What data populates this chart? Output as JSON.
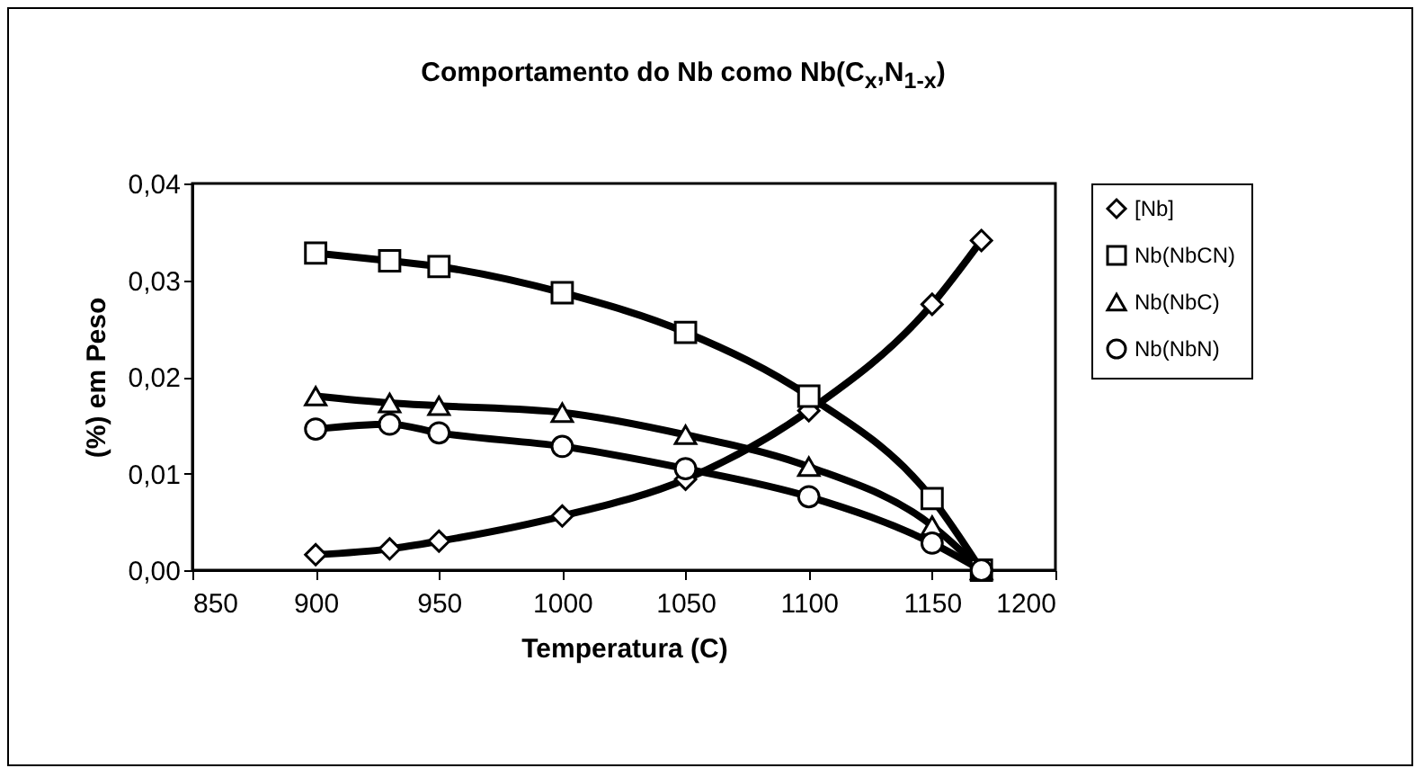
{
  "chart_data": {
    "type": "line",
    "title": "Comportamento do Nb como Nb(C$_{x}$,N$_{1-x}$)",
    "xlabel": "Temperatura (C)",
    "ylabel": "(%) em Peso",
    "x": [
      900,
      930,
      950,
      1000,
      1050,
      1100,
      1150,
      1170
    ],
    "series": [
      {
        "name": "[Nb]",
        "color": "#000000",
        "marker": "diamond",
        "values": [
          0.0016,
          0.0022,
          0.003,
          0.0056,
          0.0094,
          0.0165,
          0.0275,
          0.0341
        ]
      },
      {
        "name": "Nb(NbCN)",
        "color": "#000000",
        "marker": "square",
        "values": [
          0.0328,
          0.032,
          0.0314,
          0.0287,
          0.0246,
          0.018,
          0.0074,
          0
        ]
      },
      {
        "name": "Nb(NbC)",
        "color": "#000000",
        "marker": "triangle",
        "values": [
          0.018,
          0.0173,
          0.017,
          0.0163,
          0.014,
          0.0107,
          0.0046,
          0
        ]
      },
      {
        "name": "Nb(NbN)",
        "color": "#000000",
        "marker": "circle",
        "values": [
          0.0146,
          0.0151,
          0.0142,
          0.0128,
          0.0105,
          0.0076,
          0.0028,
          0
        ]
      }
    ],
    "xlim": [
      850,
      1200
    ],
    "xticks": [
      850,
      900,
      950,
      1000,
      1050,
      1100,
      1150,
      1200
    ],
    "ylim": [
      0,
      0.04
    ],
    "yticks": [
      {
        "value": 0,
        "label": "0,00"
      },
      {
        "value": 0.01,
        "label": "0,01"
      },
      {
        "value": 0.02,
        "label": "0,02"
      },
      {
        "value": 0.03,
        "label": "0,03"
      },
      {
        "value": 0.04,
        "label": "0,04"
      }
    ],
    "grid": false,
    "legend": "right"
  }
}
